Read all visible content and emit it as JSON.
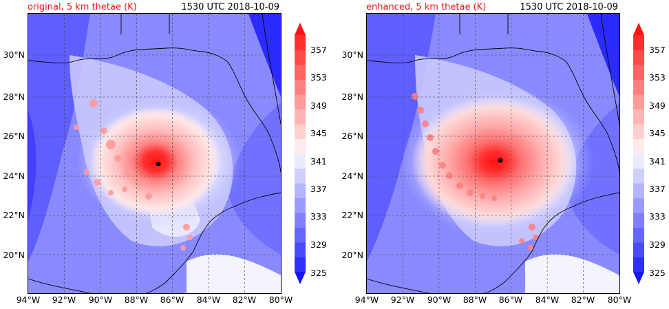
{
  "panels": [
    {
      "id": "original",
      "title_left": "original, 5 km thetae (K)",
      "title_right": "1530 UTC 2018-10-09",
      "storm_center": {
        "lon": -86.7,
        "lat": 24.7
      }
    },
    {
      "id": "enhanced",
      "title_left": "enhanced, 5 km thetae (K)",
      "title_right": "1530 UTC 2018-10-09",
      "storm_center": {
        "lon": -86.6,
        "lat": 24.85
      }
    }
  ],
  "map": {
    "lon_range": [
      -94,
      -80
    ],
    "lat_range": [
      18.2,
      31.9
    ],
    "lon_ticks": [
      "94°W",
      "92°W",
      "90°W",
      "88°W",
      "86°W",
      "84°W",
      "82°W",
      "80°W"
    ],
    "lat_ticks": [
      "20°N",
      "22°N",
      "24°N",
      "26°N",
      "28°N",
      "30°N"
    ],
    "gridlines": true
  },
  "colorbar": {
    "levels": [
      325,
      327,
      329,
      331,
      333,
      335,
      337,
      339,
      341,
      343,
      345,
      347,
      349,
      351,
      353,
      355,
      357,
      359
    ],
    "tick_labels": [
      "325",
      "329",
      "333",
      "337",
      "341",
      "345",
      "349",
      "353",
      "357"
    ],
    "extend": "both",
    "colors": [
      "#1414ff",
      "#2e2eff",
      "#4a4aff",
      "#6565ff",
      "#8080ff",
      "#9b9bff",
      "#b5b5ff",
      "#d0d0ff",
      "#ebebff",
      "#ffebeb",
      "#ffd0d0",
      "#ffb5b5",
      "#ff9b9b",
      "#ff8080",
      "#ff6565",
      "#ff4a4a",
      "#ff2e2e",
      "#ff1414"
    ]
  }
}
